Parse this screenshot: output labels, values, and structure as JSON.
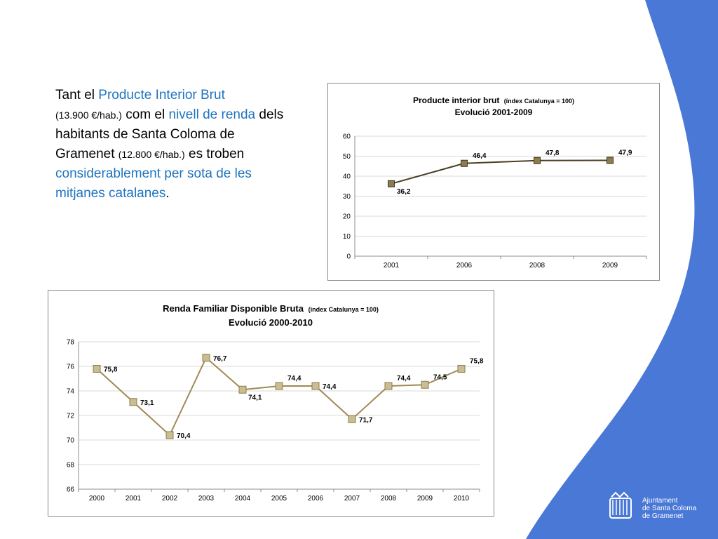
{
  "intro": {
    "p1": "Tant el ",
    "pib": "Producte Interior Brut",
    "pib_value": "(13.900 €/hab.)",
    "p2": " com el ",
    "renda": "nivell de renda",
    "p3": " dels habitants de Santa Coloma de Gramenet ",
    "renda_value": "(12.800 €/hab.)",
    "p4": " es troben ",
    "conclusion": "considerablement per sota de les mitjanes catalanes",
    "p5": "."
  },
  "logo": {
    "line1": "Ajuntament",
    "line2": "de Santa Coloma",
    "line3": "de Gramenet"
  },
  "colors": {
    "accent": "#1f74c0",
    "wave": "#4a78d6",
    "line": "#4a3f24",
    "line2": "#9e8a55",
    "marker1": "#8b7d4c",
    "marker2": "#c9bd92"
  },
  "chart_data": [
    {
      "type": "line",
      "title": "Producte interior brut",
      "title_note": "(índex Catalunya = 100)",
      "subtitle": "Evolució 2001-2009",
      "categories": [
        "2001",
        "2006",
        "2008",
        "2009"
      ],
      "values": [
        36.2,
        46.4,
        47.8,
        47.9
      ],
      "value_labels": [
        "36,2",
        "46,4",
        "47,8",
        "47,9"
      ],
      "label_pos": [
        "below",
        "above",
        "above",
        "above"
      ],
      "ylim": [
        0,
        60
      ],
      "yticks": [
        0,
        10,
        20,
        30,
        40,
        50,
        60
      ],
      "grid": true,
      "legend": "none"
    },
    {
      "type": "line",
      "title": "Renda Familiar Disponible Bruta",
      "title_note": "(índex Catalunya = 100)",
      "subtitle": "Evolució 2000-2010",
      "categories": [
        "2000",
        "2001",
        "2002",
        "2003",
        "2004",
        "2005",
        "2006",
        "2007",
        "2008",
        "2009",
        "2010"
      ],
      "values": [
        75.8,
        73.1,
        70.4,
        76.7,
        74.1,
        74.4,
        74.4,
        71.7,
        74.4,
        74.5,
        75.8
      ],
      "value_labels": [
        "75,8",
        "73,1",
        "70,4",
        "76,7",
        "74,1",
        "74,4",
        "74,4",
        "71,7",
        "74,4",
        "74,5",
        "75,8"
      ],
      "label_pos": [
        "right",
        "right",
        "right",
        "right",
        "below",
        "above",
        "right",
        "right",
        "above",
        "above",
        "above"
      ],
      "ylim": [
        66,
        78
      ],
      "yticks": [
        66,
        68,
        70,
        72,
        74,
        76,
        78
      ],
      "grid": true,
      "legend": "none"
    }
  ]
}
